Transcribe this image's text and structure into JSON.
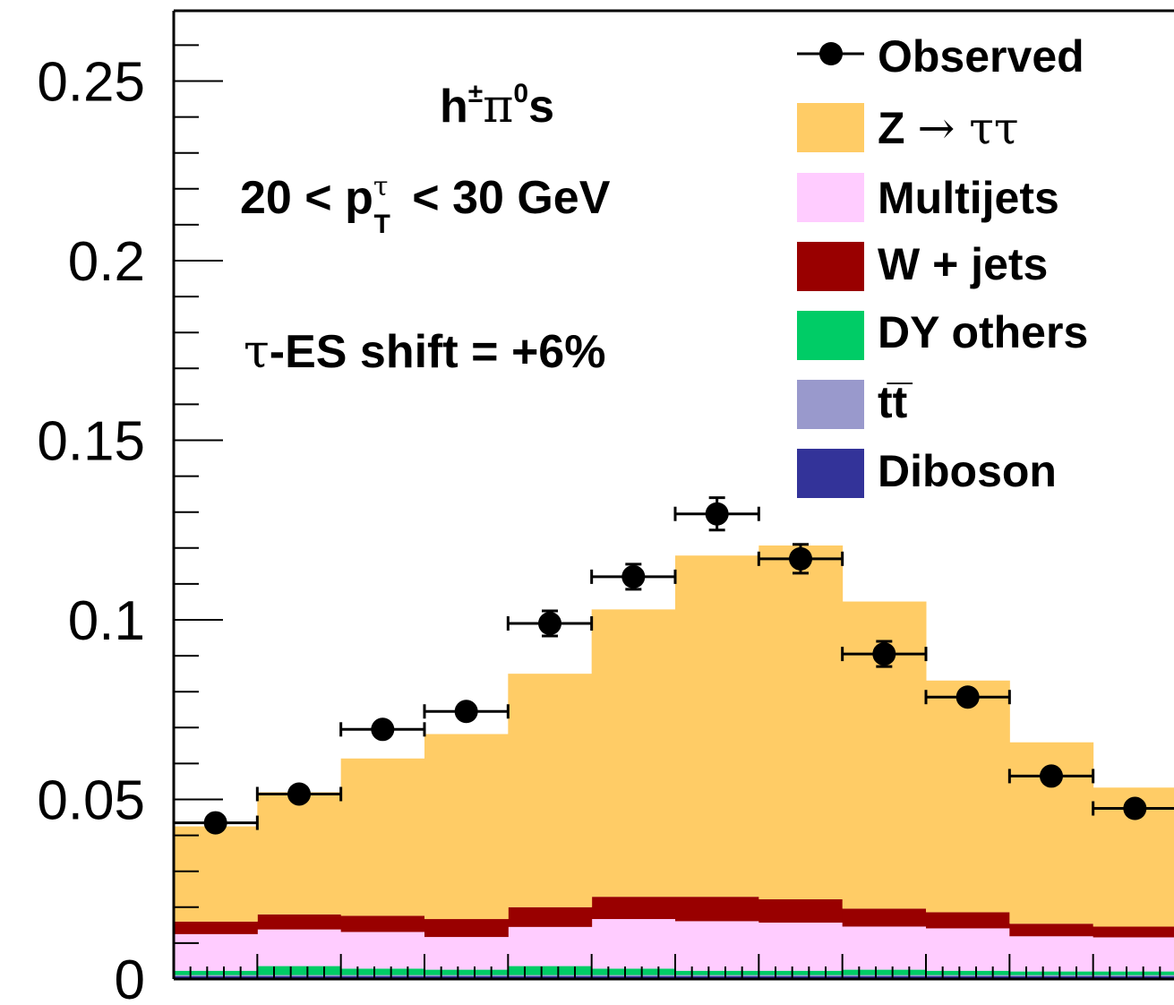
{
  "chart_data": {
    "type": "histogram",
    "x_bins": 12,
    "ylim": [
      0,
      0.27
    ],
    "y_ticks": [
      {
        "value": 0,
        "label": "0"
      },
      {
        "value": 0.05,
        "label": "0.05"
      },
      {
        "value": 0.1,
        "label": "0.1"
      },
      {
        "value": 0.15,
        "label": "0.15"
      },
      {
        "value": 0.2,
        "label": "0.2"
      },
      {
        "value": 0.25,
        "label": "0.25"
      }
    ],
    "stack": [
      {
        "name": "Diboson",
        "color": "#333399",
        "values": [
          0.0008,
          0.0008,
          0.0008,
          0.0008,
          0.0008,
          0.0008,
          0.0008,
          0.0008,
          0.0008,
          0.0008,
          0.0008,
          0.0008
        ]
      },
      {
        "name": "tt̄",
        "color": "#9999cc",
        "values": [
          0.0003,
          0.0003,
          0.0003,
          0.0003,
          0.0003,
          0.0003,
          0.0003,
          0.0003,
          0.0003,
          0.0003,
          0.0003,
          0.0003
        ]
      },
      {
        "name": "DY others",
        "color": "#00cc66",
        "values": [
          0.0012,
          0.0025,
          0.0018,
          0.0015,
          0.0025,
          0.0018,
          0.0012,
          0.0012,
          0.0015,
          0.0012,
          0.001,
          0.001
        ]
      },
      {
        "name": "Multijets",
        "color": "#ffccff",
        "values": [
          0.0102,
          0.0102,
          0.0102,
          0.0091,
          0.0109,
          0.0138,
          0.0138,
          0.0134,
          0.012,
          0.0118,
          0.0098,
          0.0095
        ]
      },
      {
        "name": "W + jets",
        "color": "#990000",
        "values": [
          0.0035,
          0.0042,
          0.0045,
          0.005,
          0.0055,
          0.0062,
          0.0068,
          0.0065,
          0.005,
          0.0045,
          0.0035,
          0.003
        ]
      },
      {
        "name": "Z → ττ",
        "color": "#ffcc66",
        "values": [
          0.0265,
          0.034,
          0.0438,
          0.0515,
          0.065,
          0.08,
          0.095,
          0.0985,
          0.0855,
          0.0645,
          0.0505,
          0.0387
        ]
      }
    ],
    "observed": {
      "name": "Observed",
      "values": [
        0.0435,
        0.0515,
        0.0695,
        0.0745,
        0.099,
        0.112,
        0.1295,
        0.117,
        0.0905,
        0.0785,
        0.0565,
        0.0475
      ],
      "errors": [
        0.0018,
        0.0018,
        0.0018,
        0.0018,
        0.0035,
        0.0035,
        0.0045,
        0.004,
        0.0035,
        0.0018,
        0.0018,
        0.0018
      ]
    },
    "annotations": {
      "decay_mode": "h±π0s",
      "pt_range": "20 < pτT < 30 GeV",
      "es_shift": "τ-ES shift = +6%"
    },
    "legend": [
      "Observed",
      "Z → ττ",
      "Multijets",
      "W + jets",
      "DY others",
      "tt̄",
      "Diboson"
    ],
    "legend_placement": "top-right",
    "grid": false
  }
}
